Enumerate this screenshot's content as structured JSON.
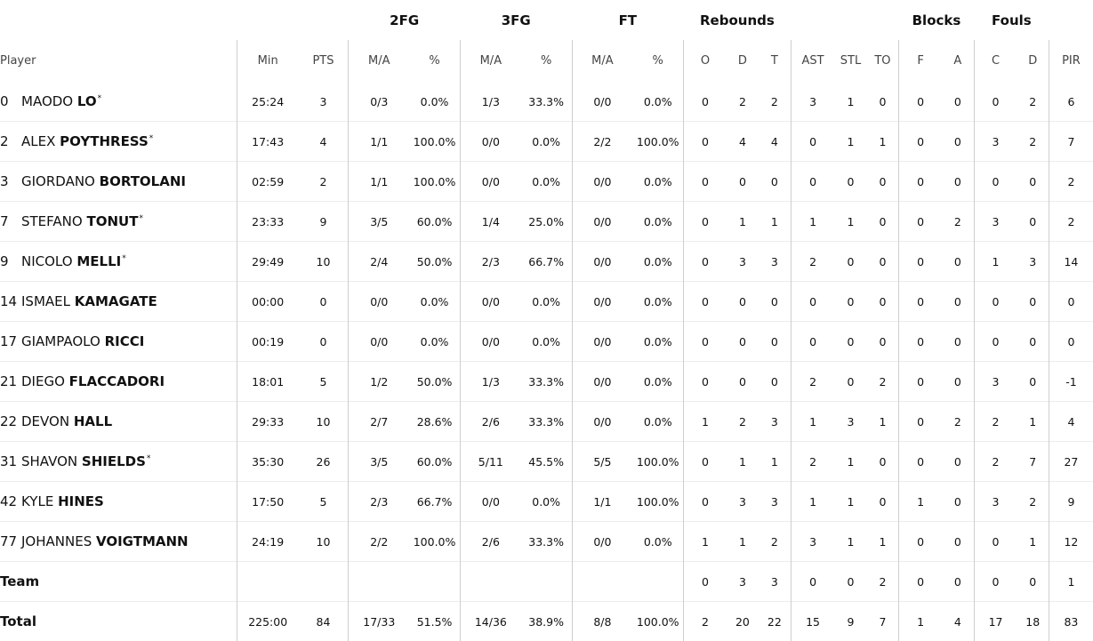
{
  "headers": {
    "groups": {
      "twofg": "2FG",
      "threefg": "3FG",
      "ft": "FT",
      "rebounds": "Rebounds",
      "blocks": "Blocks",
      "fouls": "Fouls"
    },
    "sub": {
      "player": "Player",
      "min": "Min",
      "pts": "PTS",
      "twofg_ma": "M/A",
      "twofg_pct": "%",
      "threefg_ma": "M/A",
      "threefg_pct": "%",
      "ft_ma": "M/A",
      "ft_pct": "%",
      "reb_o": "O",
      "reb_d": "D",
      "reb_t": "T",
      "ast": "AST",
      "stl": "STL",
      "to": "TO",
      "blk_f": "F",
      "blk_a": "A",
      "foul_c": "C",
      "foul_d": "D",
      "pir": "PIR",
      "extra": "+"
    }
  },
  "players": [
    {
      "number": "0",
      "first": "MAODO",
      "last": "LO",
      "starter": true,
      "min": "25:24",
      "pts": "3",
      "fg2_ma": "0/3",
      "fg2_pct": "0.0%",
      "fg3_ma": "1/3",
      "fg3_pct": "33.3%",
      "ft_ma": "0/0",
      "ft_pct": "0.0%",
      "reb_o": "0",
      "reb_d": "2",
      "reb_t": "2",
      "ast": "3",
      "stl": "1",
      "to": "0",
      "blk_f": "0",
      "blk_a": "0",
      "foul_c": "0",
      "foul_d": "2",
      "pir": "6"
    },
    {
      "number": "2",
      "first": "ALEX",
      "last": "POYTHRESS",
      "starter": true,
      "min": "17:43",
      "pts": "4",
      "fg2_ma": "1/1",
      "fg2_pct": "100.0%",
      "fg3_ma": "0/0",
      "fg3_pct": "0.0%",
      "ft_ma": "2/2",
      "ft_pct": "100.0%",
      "reb_o": "0",
      "reb_d": "4",
      "reb_t": "4",
      "ast": "0",
      "stl": "1",
      "to": "1",
      "blk_f": "0",
      "blk_a": "0",
      "foul_c": "3",
      "foul_d": "2",
      "pir": "7"
    },
    {
      "number": "3",
      "first": "GIORDANO",
      "last": "BORTOLANI",
      "starter": false,
      "min": "02:59",
      "pts": "2",
      "fg2_ma": "1/1",
      "fg2_pct": "100.0%",
      "fg3_ma": "0/0",
      "fg3_pct": "0.0%",
      "ft_ma": "0/0",
      "ft_pct": "0.0%",
      "reb_o": "0",
      "reb_d": "0",
      "reb_t": "0",
      "ast": "0",
      "stl": "0",
      "to": "0",
      "blk_f": "0",
      "blk_a": "0",
      "foul_c": "0",
      "foul_d": "0",
      "pir": "2"
    },
    {
      "number": "7",
      "first": "STEFANO",
      "last": "TONUT",
      "starter": true,
      "min": "23:33",
      "pts": "9",
      "fg2_ma": "3/5",
      "fg2_pct": "60.0%",
      "fg3_ma": "1/4",
      "fg3_pct": "25.0%",
      "ft_ma": "0/0",
      "ft_pct": "0.0%",
      "reb_o": "0",
      "reb_d": "1",
      "reb_t": "1",
      "ast": "1",
      "stl": "1",
      "to": "0",
      "blk_f": "0",
      "blk_a": "2",
      "foul_c": "3",
      "foul_d": "0",
      "pir": "2"
    },
    {
      "number": "9",
      "first": "NICOLO",
      "last": "MELLI",
      "starter": true,
      "min": "29:49",
      "pts": "10",
      "fg2_ma": "2/4",
      "fg2_pct": "50.0%",
      "fg3_ma": "2/3",
      "fg3_pct": "66.7%",
      "ft_ma": "0/0",
      "ft_pct": "0.0%",
      "reb_o": "0",
      "reb_d": "3",
      "reb_t": "3",
      "ast": "2",
      "stl": "0",
      "to": "0",
      "blk_f": "0",
      "blk_a": "0",
      "foul_c": "1",
      "foul_d": "3",
      "pir": "14"
    },
    {
      "number": "14",
      "first": "ISMAEL",
      "last": "KAMAGATE",
      "starter": false,
      "min": "00:00",
      "pts": "0",
      "fg2_ma": "0/0",
      "fg2_pct": "0.0%",
      "fg3_ma": "0/0",
      "fg3_pct": "0.0%",
      "ft_ma": "0/0",
      "ft_pct": "0.0%",
      "reb_o": "0",
      "reb_d": "0",
      "reb_t": "0",
      "ast": "0",
      "stl": "0",
      "to": "0",
      "blk_f": "0",
      "blk_a": "0",
      "foul_c": "0",
      "foul_d": "0",
      "pir": "0"
    },
    {
      "number": "17",
      "first": "GIAMPAOLO",
      "last": "RICCI",
      "starter": false,
      "min": "00:19",
      "pts": "0",
      "fg2_ma": "0/0",
      "fg2_pct": "0.0%",
      "fg3_ma": "0/0",
      "fg3_pct": "0.0%",
      "ft_ma": "0/0",
      "ft_pct": "0.0%",
      "reb_o": "0",
      "reb_d": "0",
      "reb_t": "0",
      "ast": "0",
      "stl": "0",
      "to": "0",
      "blk_f": "0",
      "blk_a": "0",
      "foul_c": "0",
      "foul_d": "0",
      "pir": "0"
    },
    {
      "number": "21",
      "first": "DIEGO",
      "last": "FLACCADORI",
      "starter": false,
      "min": "18:01",
      "pts": "5",
      "fg2_ma": "1/2",
      "fg2_pct": "50.0%",
      "fg3_ma": "1/3",
      "fg3_pct": "33.3%",
      "ft_ma": "0/0",
      "ft_pct": "0.0%",
      "reb_o": "0",
      "reb_d": "0",
      "reb_t": "0",
      "ast": "2",
      "stl": "0",
      "to": "2",
      "blk_f": "0",
      "blk_a": "0",
      "foul_c": "3",
      "foul_d": "0",
      "pir": "-1"
    },
    {
      "number": "22",
      "first": "DEVON",
      "last": "HALL",
      "starter": false,
      "min": "29:33",
      "pts": "10",
      "fg2_ma": "2/7",
      "fg2_pct": "28.6%",
      "fg3_ma": "2/6",
      "fg3_pct": "33.3%",
      "ft_ma": "0/0",
      "ft_pct": "0.0%",
      "reb_o": "1",
      "reb_d": "2",
      "reb_t": "3",
      "ast": "1",
      "stl": "3",
      "to": "1",
      "blk_f": "0",
      "blk_a": "2",
      "foul_c": "2",
      "foul_d": "1",
      "pir": "4"
    },
    {
      "number": "31",
      "first": "SHAVON",
      "last": "SHIELDS",
      "starter": true,
      "min": "35:30",
      "pts": "26",
      "fg2_ma": "3/5",
      "fg2_pct": "60.0%",
      "fg3_ma": "5/11",
      "fg3_pct": "45.5%",
      "ft_ma": "5/5",
      "ft_pct": "100.0%",
      "reb_o": "0",
      "reb_d": "1",
      "reb_t": "1",
      "ast": "2",
      "stl": "1",
      "to": "0",
      "blk_f": "0",
      "blk_a": "0",
      "foul_c": "2",
      "foul_d": "7",
      "pir": "27"
    },
    {
      "number": "42",
      "first": "KYLE",
      "last": "HINES",
      "starter": false,
      "min": "17:50",
      "pts": "5",
      "fg2_ma": "2/3",
      "fg2_pct": "66.7%",
      "fg3_ma": "0/0",
      "fg3_pct": "0.0%",
      "ft_ma": "1/1",
      "ft_pct": "100.0%",
      "reb_o": "0",
      "reb_d": "3",
      "reb_t": "3",
      "ast": "1",
      "stl": "1",
      "to": "0",
      "blk_f": "1",
      "blk_a": "0",
      "foul_c": "3",
      "foul_d": "2",
      "pir": "9"
    },
    {
      "number": "77",
      "first": "JOHANNES",
      "last": "VOIGTMANN",
      "starter": false,
      "min": "24:19",
      "pts": "10",
      "fg2_ma": "2/2",
      "fg2_pct": "100.0%",
      "fg3_ma": "2/6",
      "fg3_pct": "33.3%",
      "ft_ma": "0/0",
      "ft_pct": "0.0%",
      "reb_o": "1",
      "reb_d": "1",
      "reb_t": "2",
      "ast": "3",
      "stl": "1",
      "to": "1",
      "blk_f": "0",
      "blk_a": "0",
      "foul_c": "0",
      "foul_d": "1",
      "pir": "12"
    }
  ],
  "team": {
    "label": "Team",
    "reb_o": "0",
    "reb_d": "3",
    "reb_t": "3",
    "ast": "0",
    "stl": "0",
    "to": "2",
    "blk_f": "0",
    "blk_a": "0",
    "foul_c": "0",
    "foul_d": "0",
    "pir": "1"
  },
  "total": {
    "label": "Total",
    "min": "225:00",
    "pts": "84",
    "fg2_ma": "17/33",
    "fg2_pct": "51.5%",
    "fg3_ma": "14/36",
    "fg3_pct": "38.9%",
    "ft_ma": "8/8",
    "ft_pct": "100.0%",
    "reb_o": "2",
    "reb_d": "20",
    "reb_t": "22",
    "ast": "15",
    "stl": "9",
    "to": "7",
    "blk_f": "1",
    "blk_a": "4",
    "foul_c": "17",
    "foul_d": "18",
    "pir": "83"
  },
  "starter_mark": "*"
}
